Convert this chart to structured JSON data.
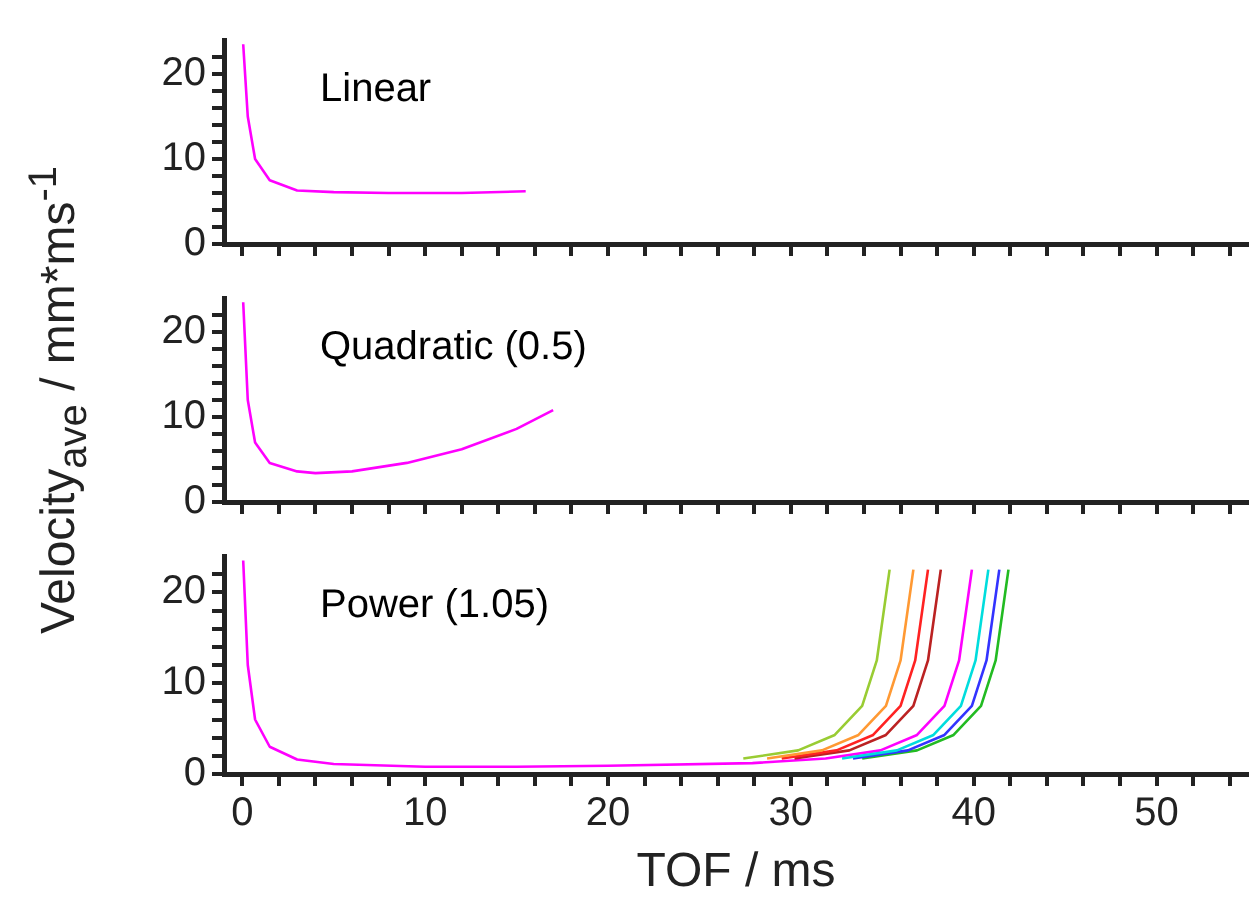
{
  "chart_data": [
    {
      "type": "line",
      "annotations": [
        "Linear"
      ],
      "xlim": [
        -1,
        55
      ],
      "ylim": [
        0,
        24
      ],
      "tick_labels": "y",
      "grid": false,
      "legend": false,
      "xticks": [
        0,
        {
          "value": 2,
          "label": null
        },
        {
          "value": 4,
          "label": null
        },
        {
          "value": 6,
          "label": null
        },
        {
          "value": 8,
          "label": null
        },
        10,
        {
          "value": 12,
          "label": null
        },
        {
          "value": 14,
          "label": null
        },
        {
          "value": 16,
          "label": null
        },
        {
          "value": 18,
          "label": null
        },
        20,
        {
          "value": 22,
          "label": null
        },
        {
          "value": 24,
          "label": null
        },
        {
          "value": 26,
          "label": null
        },
        {
          "value": 28,
          "label": null
        },
        30,
        {
          "value": 32,
          "label": null
        },
        {
          "value": 34,
          "label": null
        },
        {
          "value": 36,
          "label": null
        },
        {
          "value": 38,
          "label": null
        },
        40,
        {
          "value": 42,
          "label": null
        },
        {
          "value": 44,
          "label": null
        },
        {
          "value": 46,
          "label": null
        },
        {
          "value": 48,
          "label": null
        },
        50,
        {
          "value": 52,
          "label": null
        },
        {
          "value": 54,
          "label": null
        }
      ],
      "yticks": [
        0,
        {
          "value": 2,
          "label": null
        },
        {
          "value": 4,
          "label": null
        },
        {
          "value": 6,
          "label": null
        },
        {
          "value": 8,
          "label": null
        },
        10,
        {
          "value": 12,
          "label": null
        },
        {
          "value": 14,
          "label": null
        },
        {
          "value": 16,
          "label": null
        },
        {
          "value": 18,
          "label": null
        },
        20,
        {
          "value": 22,
          "label": null
        }
      ],
      "series": [
        {
          "color": "#ff00ff",
          "x": [
            0.05,
            0.3,
            0.7,
            1.5,
            3,
            5,
            8,
            12,
            15.5
          ],
          "values": [
            23.5,
            15,
            10,
            7.5,
            6.3,
            6.1,
            6.0,
            6.0,
            6.2
          ]
        }
      ]
    },
    {
      "type": "line",
      "annotations": [
        "Quadratic (0.5)"
      ],
      "ylabel": "Velocity$_{ave}$ / mm*ms$^{-1}$",
      "xlim": [
        -1,
        55
      ],
      "ylim": [
        0,
        24
      ],
      "tick_labels": "y",
      "grid": false,
      "legend": false,
      "xticks": [
        0,
        {
          "value": 2,
          "label": null
        },
        {
          "value": 4,
          "label": null
        },
        {
          "value": 6,
          "label": null
        },
        {
          "value": 8,
          "label": null
        },
        10,
        {
          "value": 12,
          "label": null
        },
        {
          "value": 14,
          "label": null
        },
        {
          "value": 16,
          "label": null
        },
        {
          "value": 18,
          "label": null
        },
        20,
        {
          "value": 22,
          "label": null
        },
        {
          "value": 24,
          "label": null
        },
        {
          "value": 26,
          "label": null
        },
        {
          "value": 28,
          "label": null
        },
        30,
        {
          "value": 32,
          "label": null
        },
        {
          "value": 34,
          "label": null
        },
        {
          "value": 36,
          "label": null
        },
        {
          "value": 38,
          "label": null
        },
        40,
        {
          "value": 42,
          "label": null
        },
        {
          "value": 44,
          "label": null
        },
        {
          "value": 46,
          "label": null
        },
        {
          "value": 48,
          "label": null
        },
        50,
        {
          "value": 52,
          "label": null
        },
        {
          "value": 54,
          "label": null
        }
      ],
      "yticks": [
        0,
        {
          "value": 2,
          "label": null
        },
        {
          "value": 4,
          "label": null
        },
        {
          "value": 6,
          "label": null
        },
        {
          "value": 8,
          "label": null
        },
        10,
        {
          "value": 12,
          "label": null
        },
        {
          "value": 14,
          "label": null
        },
        {
          "value": 16,
          "label": null
        },
        {
          "value": 18,
          "label": null
        },
        20,
        {
          "value": 22,
          "label": null
        }
      ],
      "series": [
        {
          "color": "#ff00ff",
          "x": [
            0.05,
            0.3,
            0.7,
            1.5,
            3,
            4,
            6,
            9,
            12,
            15,
            17
          ],
          "values": [
            23.5,
            12,
            7,
            4.6,
            3.6,
            3.4,
            3.6,
            4.6,
            6.2,
            8.6,
            10.8
          ]
        }
      ]
    },
    {
      "type": "line",
      "annotations": [
        "Power (1.05)"
      ],
      "xlabel": "TOF / ms",
      "xlim": [
        -1,
        55
      ],
      "ylim": [
        0,
        24
      ],
      "grid": false,
      "legend": false,
      "xticks": [
        0,
        {
          "value": 2,
          "label": null
        },
        {
          "value": 4,
          "label": null
        },
        {
          "value": 6,
          "label": null
        },
        {
          "value": 8,
          "label": null
        },
        10,
        {
          "value": 12,
          "label": null
        },
        {
          "value": 14,
          "label": null
        },
        {
          "value": 16,
          "label": null
        },
        {
          "value": 18,
          "label": null
        },
        20,
        {
          "value": 22,
          "label": null
        },
        {
          "value": 24,
          "label": null
        },
        {
          "value": 26,
          "label": null
        },
        {
          "value": 28,
          "label": null
        },
        30,
        {
          "value": 32,
          "label": null
        },
        {
          "value": 34,
          "label": null
        },
        {
          "value": 36,
          "label": null
        },
        {
          "value": 38,
          "label": null
        },
        40,
        {
          "value": 42,
          "label": null
        },
        {
          "value": 44,
          "label": null
        },
        {
          "value": 46,
          "label": null
        },
        {
          "value": 48,
          "label": null
        },
        50,
        {
          "value": 52,
          "label": null
        },
        {
          "value": 54,
          "label": null
        }
      ],
      "yticks": [
        0,
        {
          "value": 2,
          "label": null
        },
        {
          "value": 4,
          "label": null
        },
        {
          "value": 6,
          "label": null
        },
        {
          "value": 8,
          "label": null
        },
        10,
        {
          "value": 12,
          "label": null
        },
        {
          "value": 14,
          "label": null
        },
        {
          "value": 16,
          "label": null
        },
        {
          "value": 18,
          "label": null
        },
        20,
        {
          "value": 22,
          "label": null
        }
      ],
      "series": [
        {
          "color": "#99cc33",
          "x": [
            27.4,
            30.4,
            32.4,
            33.9,
            34.7,
            35.4
          ],
          "values": [
            1.7,
            2.6,
            4.3,
            7.5,
            12.5,
            22.5
          ]
        },
        {
          "color": "#ff9933",
          "x": [
            28.7,
            31.7,
            33.7,
            35.2,
            36,
            36.7
          ],
          "values": [
            1.7,
            2.6,
            4.3,
            7.5,
            12.5,
            22.5
          ]
        },
        {
          "color": "#ff2222",
          "x": [
            29.5,
            32.5,
            34.5,
            36,
            36.8,
            37.5
          ],
          "values": [
            1.7,
            2.6,
            4.3,
            7.5,
            12.5,
            22.5
          ]
        },
        {
          "color": "#bb2222",
          "x": [
            30.2,
            33.2,
            35.2,
            36.7,
            37.5,
            38.2
          ],
          "values": [
            1.7,
            2.6,
            4.3,
            7.5,
            12.5,
            22.5
          ]
        },
        {
          "color": "#00dddd",
          "x": [
            32.8,
            35.8,
            37.8,
            39.3,
            40.1,
            40.8
          ],
          "values": [
            1.7,
            2.6,
            4.3,
            7.5,
            12.5,
            22.5
          ]
        },
        {
          "color": "#3333ff",
          "x": [
            33.4,
            36.4,
            38.4,
            39.9,
            40.7,
            41.4
          ],
          "values": [
            1.7,
            2.6,
            4.3,
            7.5,
            12.5,
            22.5
          ]
        },
        {
          "color": "#22bb22",
          "x": [
            33.9,
            36.9,
            38.9,
            40.4,
            41.2,
            41.9
          ],
          "values": [
            1.7,
            2.6,
            4.3,
            7.5,
            12.5,
            22.5
          ]
        },
        {
          "color": "#ff00ff",
          "x": [
            0.05,
            0.3,
            0.7,
            1.5,
            3,
            5,
            10,
            15,
            20,
            27.9,
            31.9,
            34.9,
            36.9,
            38.4,
            39.2,
            39.9
          ],
          "values": [
            23.5,
            12,
            6,
            3,
            1.6,
            1.1,
            0.8,
            0.8,
            0.9,
            1.2,
            1.7,
            2.6,
            4.3,
            7.5,
            12.5,
            22.5
          ]
        }
      ]
    }
  ]
}
